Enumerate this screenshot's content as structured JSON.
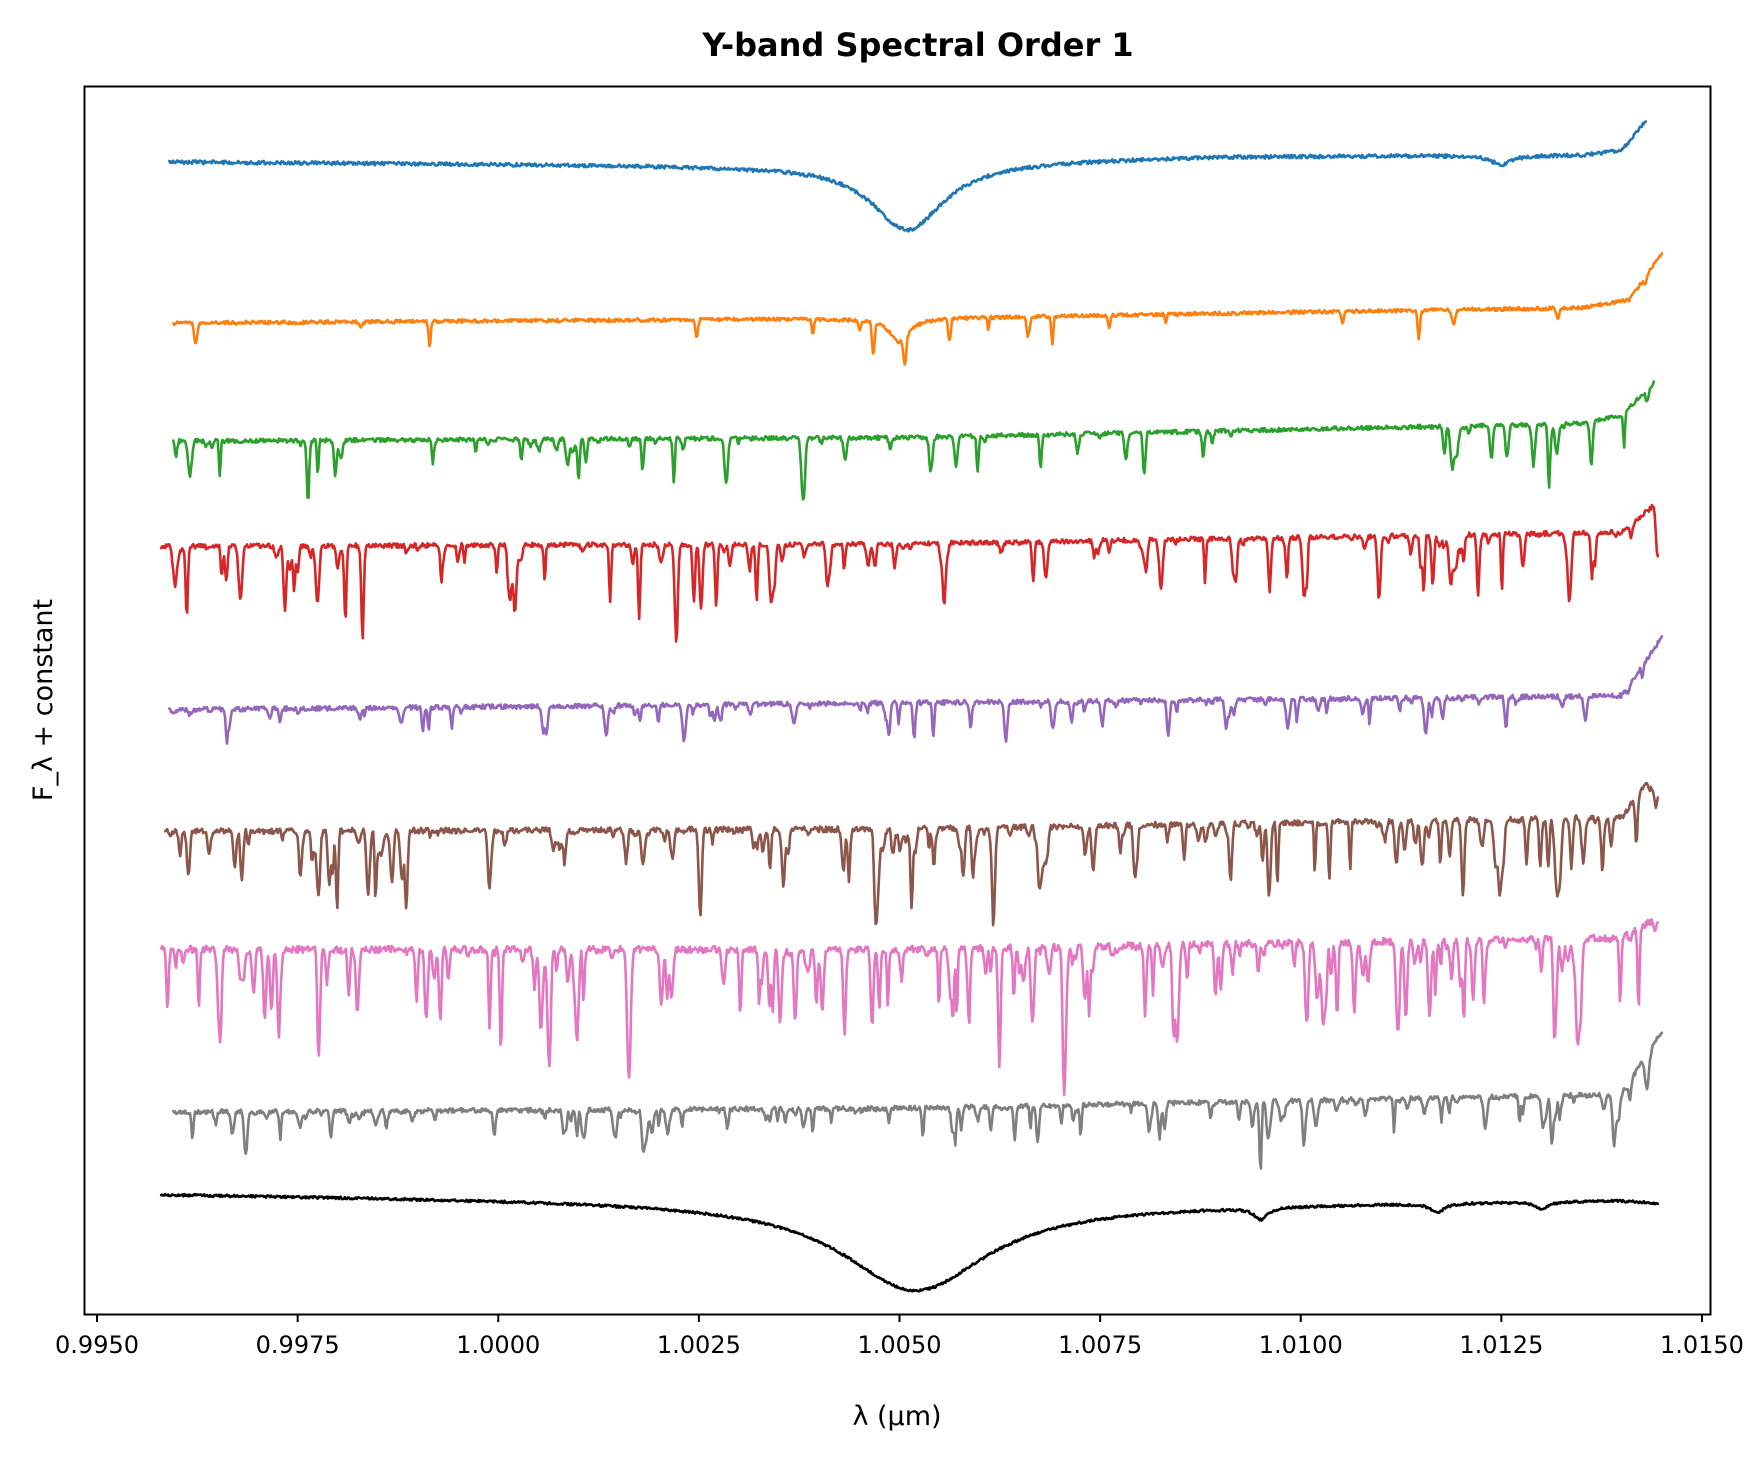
{
  "chart_data": {
    "type": "line",
    "title": "Y-band Spectral Order 1",
    "xlabel": "λ (μm)",
    "ylabel": "F_λ + constant",
    "xlim": [
      0.99485,
      1.0151
    ],
    "ylim": [
      0,
      10.5
    ],
    "x_ticks": [
      "0.9950",
      "0.9975",
      "1.0000",
      "1.0025",
      "1.0050",
      "1.0075",
      "1.0100",
      "1.0125",
      "1.0150"
    ],
    "y_ticks_visible": false,
    "grid": false,
    "legend": "none",
    "series": [
      {
        "color": "#1f77b4",
        "x_start": 0.9959,
        "x_end": 1.0143,
        "baseline": 9.86,
        "trend": [
          [
            0.9959,
            0.0
          ],
          [
            1.003,
            -0.03
          ],
          [
            1.009,
            0.05
          ],
          [
            1.0135,
            0.06
          ],
          [
            1.014,
            0.1
          ],
          [
            1.0143,
            0.35
          ]
        ],
        "broad": [
          {
            "center": 1.0051,
            "depth": 0.58,
            "width": 0.00055
          },
          {
            "center": 1.0125,
            "depth": 0.08,
            "width": 0.00015
          }
        ],
        "narrow": {
          "count": 0,
          "max_depth": 0.0
        },
        "noise": 0.015
      },
      {
        "color": "#ff7f0e",
        "x_start": 0.99595,
        "x_end": 1.0145,
        "baseline": 8.48,
        "trend": [
          [
            0.9959,
            0.0
          ],
          [
            1.005,
            0.04
          ],
          [
            1.0135,
            0.13
          ],
          [
            1.0141,
            0.2
          ],
          [
            1.0145,
            0.6
          ]
        ],
        "broad": [
          {
            "center": 1.005,
            "depth": 0.2,
            "width": 0.00015
          }
        ],
        "narrow": {
          "count": 24,
          "max_depth": 0.3
        },
        "noise": 0.015
      },
      {
        "color": "#2ca02c",
        "x_start": 0.99595,
        "x_end": 1.0144,
        "baseline": 7.47,
        "trend": [
          [
            0.996,
            0.0
          ],
          [
            1.005,
            0.03
          ],
          [
            1.0135,
            0.15
          ],
          [
            1.014,
            0.22
          ],
          [
            1.0144,
            0.5
          ]
        ],
        "broad": [],
        "narrow": {
          "count": 75,
          "max_depth": 0.42
        },
        "noise": 0.018
      },
      {
        "color": "#d62728",
        "x_start": 0.9958,
        "x_end": 1.01445,
        "baseline": 6.57,
        "trend": [
          [
            0.9958,
            0.0
          ],
          [
            1.005,
            0.02
          ],
          [
            1.014,
            0.12
          ],
          [
            1.0144,
            0.35
          ]
        ],
        "broad": [],
        "narrow": {
          "count": 140,
          "max_depth": 0.58
        },
        "noise": 0.02
      },
      {
        "color": "#9467bd",
        "x_start": 0.9959,
        "x_end": 1.0145,
        "baseline": 5.17,
        "trend": [
          [
            0.9959,
            0.0
          ],
          [
            1.005,
            0.06
          ],
          [
            1.014,
            0.12
          ],
          [
            1.0145,
            0.62
          ]
        ],
        "broad": [],
        "narrow": {
          "count": 100,
          "max_depth": 0.33
        },
        "noise": 0.02
      },
      {
        "color": "#8c564b",
        "x_start": 0.99585,
        "x_end": 1.01445,
        "baseline": 4.13,
        "trend": [
          [
            0.9958,
            0.0
          ],
          [
            1.005,
            0.02
          ],
          [
            1.014,
            0.12
          ],
          [
            1.0143,
            0.4
          ]
        ],
        "broad": [],
        "narrow": {
          "count": 180,
          "max_depth": 0.52
        },
        "noise": 0.025
      },
      {
        "color": "#e377c2",
        "x_start": 0.9958,
        "x_end": 1.01445,
        "baseline": 3.12,
        "trend": [
          [
            0.9958,
            0.0
          ],
          [
            1.005,
            0.0
          ],
          [
            1.014,
            0.1
          ],
          [
            1.0144,
            0.25
          ]
        ],
        "broad": [],
        "narrow": {
          "count": 210,
          "max_depth": 0.72
        },
        "noise": 0.03
      },
      {
        "color": "#7f7f7f",
        "x_start": 0.99595,
        "x_end": 1.0145,
        "baseline": 1.73,
        "trend": [
          [
            0.996,
            0.0
          ],
          [
            1.005,
            0.03
          ],
          [
            1.014,
            0.15
          ],
          [
            1.0145,
            0.7
          ]
        ],
        "broad": [],
        "narrow": {
          "count": 170,
          "max_depth": 0.3
        },
        "noise": 0.02
      },
      {
        "color": "#000000",
        "x_start": 0.9958,
        "x_end": 1.01445,
        "baseline": 1.03,
        "trend": [
          [
            0.9958,
            0.0
          ],
          [
            1.005,
            -0.08
          ],
          [
            1.009,
            -0.08
          ],
          [
            1.014,
            -0.05
          ],
          [
            1.0144,
            -0.07
          ]
        ],
        "broad": [
          {
            "center": 1.0052,
            "depth": 0.75,
            "width": 0.0011
          },
          {
            "center": 1.0095,
            "depth": 0.1,
            "width": 0.0001
          },
          {
            "center": 1.0117,
            "depth": 0.08,
            "width": 0.0001
          },
          {
            "center": 1.013,
            "depth": 0.06,
            "width": 0.0001
          }
        ],
        "narrow": {
          "count": 0,
          "max_depth": 0.0
        },
        "noise": 0.01
      }
    ]
  }
}
